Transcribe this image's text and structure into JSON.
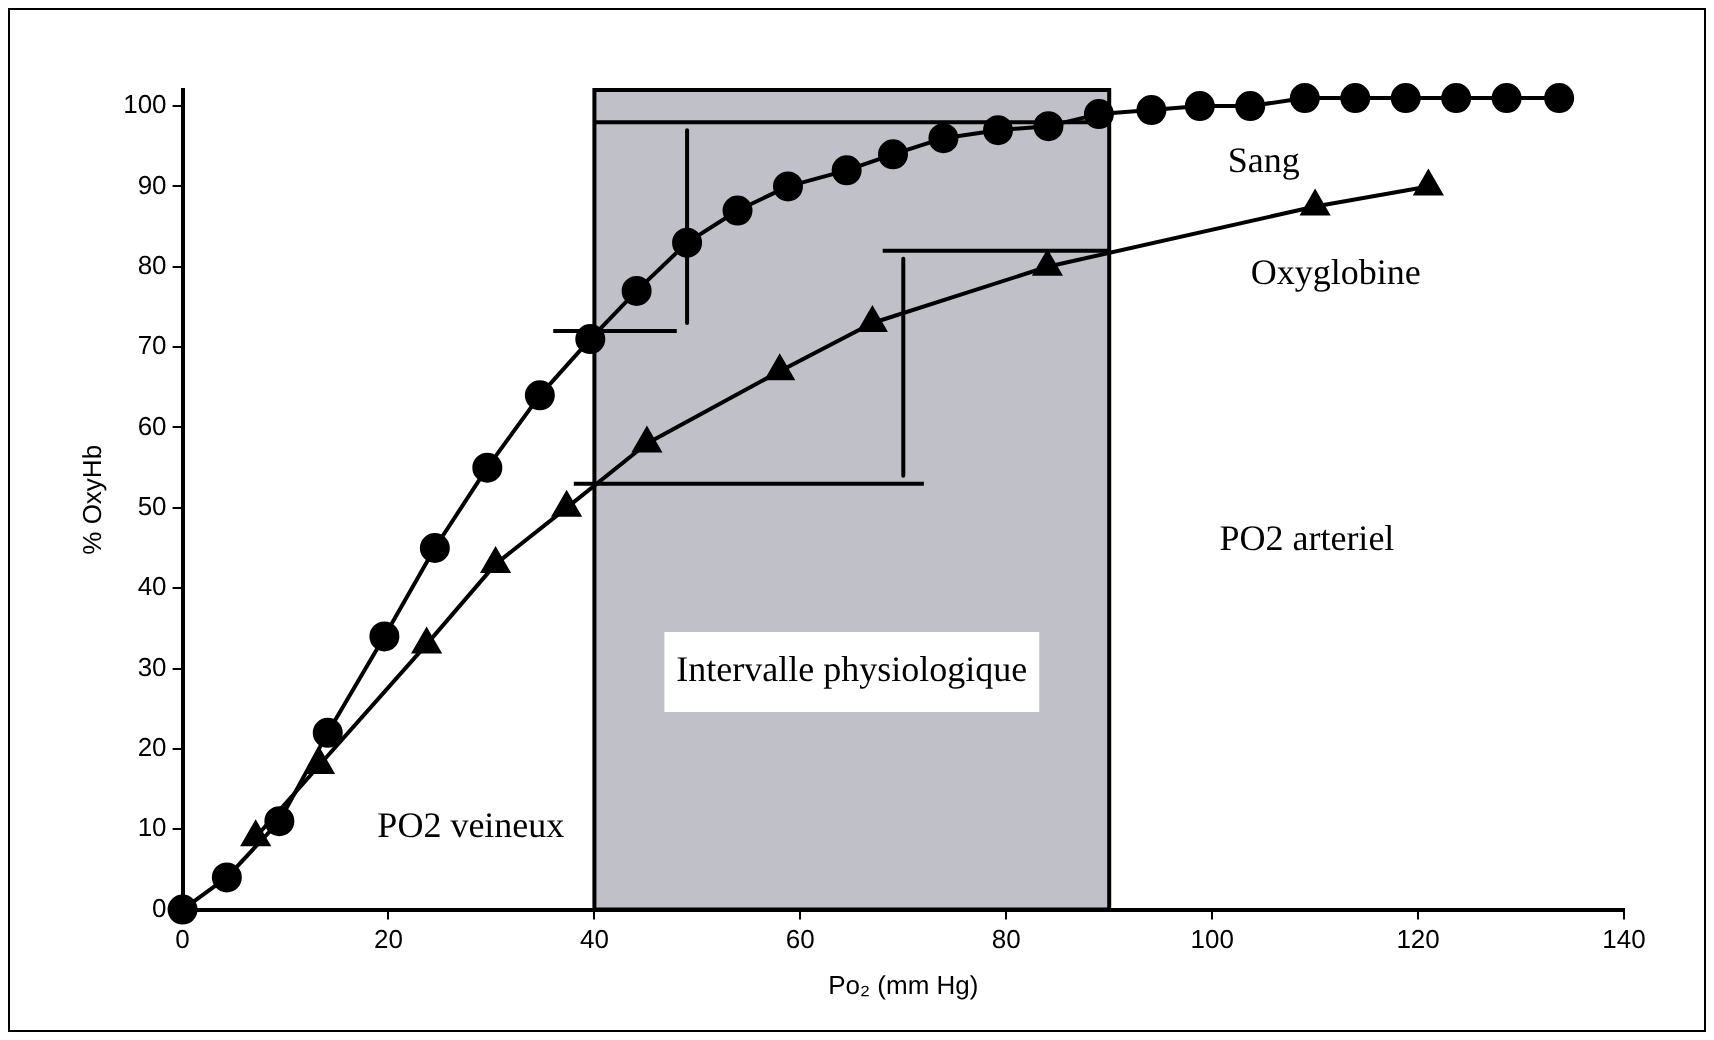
{
  "chart_data": {
    "type": "line",
    "xlabel": "Po₂ (mm Hg)",
    "ylabel": "% OxyHb",
    "xlim": [
      0,
      140
    ],
    "xticks": [
      0,
      20,
      40,
      60,
      80,
      100,
      120,
      140
    ],
    "ylim": [
      0,
      102
    ],
    "yticks": [
      0,
      10,
      20,
      30,
      40,
      50,
      60,
      70,
      80,
      90,
      100
    ],
    "grid": false,
    "legend": false,
    "series": [
      {
        "name": "Sang",
        "color": "#000000",
        "marker": "circle",
        "x": [
          0,
          4.3,
          9.4,
          14.1,
          19.6,
          24.5,
          29.6,
          34.7,
          39.6,
          44.1,
          49,
          53.9,
          58.8,
          64.5,
          69,
          73.9,
          79.2,
          84.1,
          89,
          94.1,
          98.8,
          103.7,
          109,
          113.9,
          118.8,
          123.7,
          128.6,
          133.7
        ],
        "values": [
          0,
          4,
          11,
          22,
          34,
          45,
          55,
          64,
          71,
          77,
          83,
          87,
          90,
          92,
          94,
          96,
          97,
          97.5,
          99,
          99.5,
          100,
          100,
          101,
          101,
          101,
          101,
          101,
          101
        ]
      },
      {
        "name": "Oxyglobine",
        "color": "#000000",
        "marker": "triangle",
        "x": [
          7.1,
          13.3,
          23.7,
          30.4,
          37.3,
          45.1,
          58,
          67,
          84,
          110,
          121
        ],
        "values": [
          9,
          18,
          33,
          43,
          50,
          58,
          67,
          73,
          80,
          87.5,
          90
        ]
      },
      {
        "color": "#000000",
        "marker": "none",
        "x": [
          40,
          90
        ],
        "values": [
          98,
          98
        ]
      },
      {
        "color": "#000000",
        "marker": "none",
        "x": [
          36,
          48
        ],
        "values": [
          72,
          72
        ]
      },
      {
        "color": "#000000",
        "marker": "none",
        "x": [
          68,
          90
        ],
        "values": [
          82,
          82
        ]
      },
      {
        "color": "#000000",
        "marker": "none",
        "x": [
          38,
          72
        ],
        "values": [
          53,
          53
        ]
      },
      {
        "color": "#000000",
        "marker": "none",
        "x": [
          49,
          49
        ],
        "values": [
          97,
          73
        ]
      },
      {
        "color": "#000000",
        "marker": "none",
        "x": [
          70,
          70
        ],
        "values": [
          81,
          54
        ]
      }
    ],
    "bands": [
      {
        "axis": "x",
        "from": 40,
        "to": 90,
        "color": "#c0c0c8",
        "label": "Intervalle physiologique"
      }
    ],
    "annotations": [
      "PO2 veineux",
      "PO2 arteriel"
    ]
  }
}
